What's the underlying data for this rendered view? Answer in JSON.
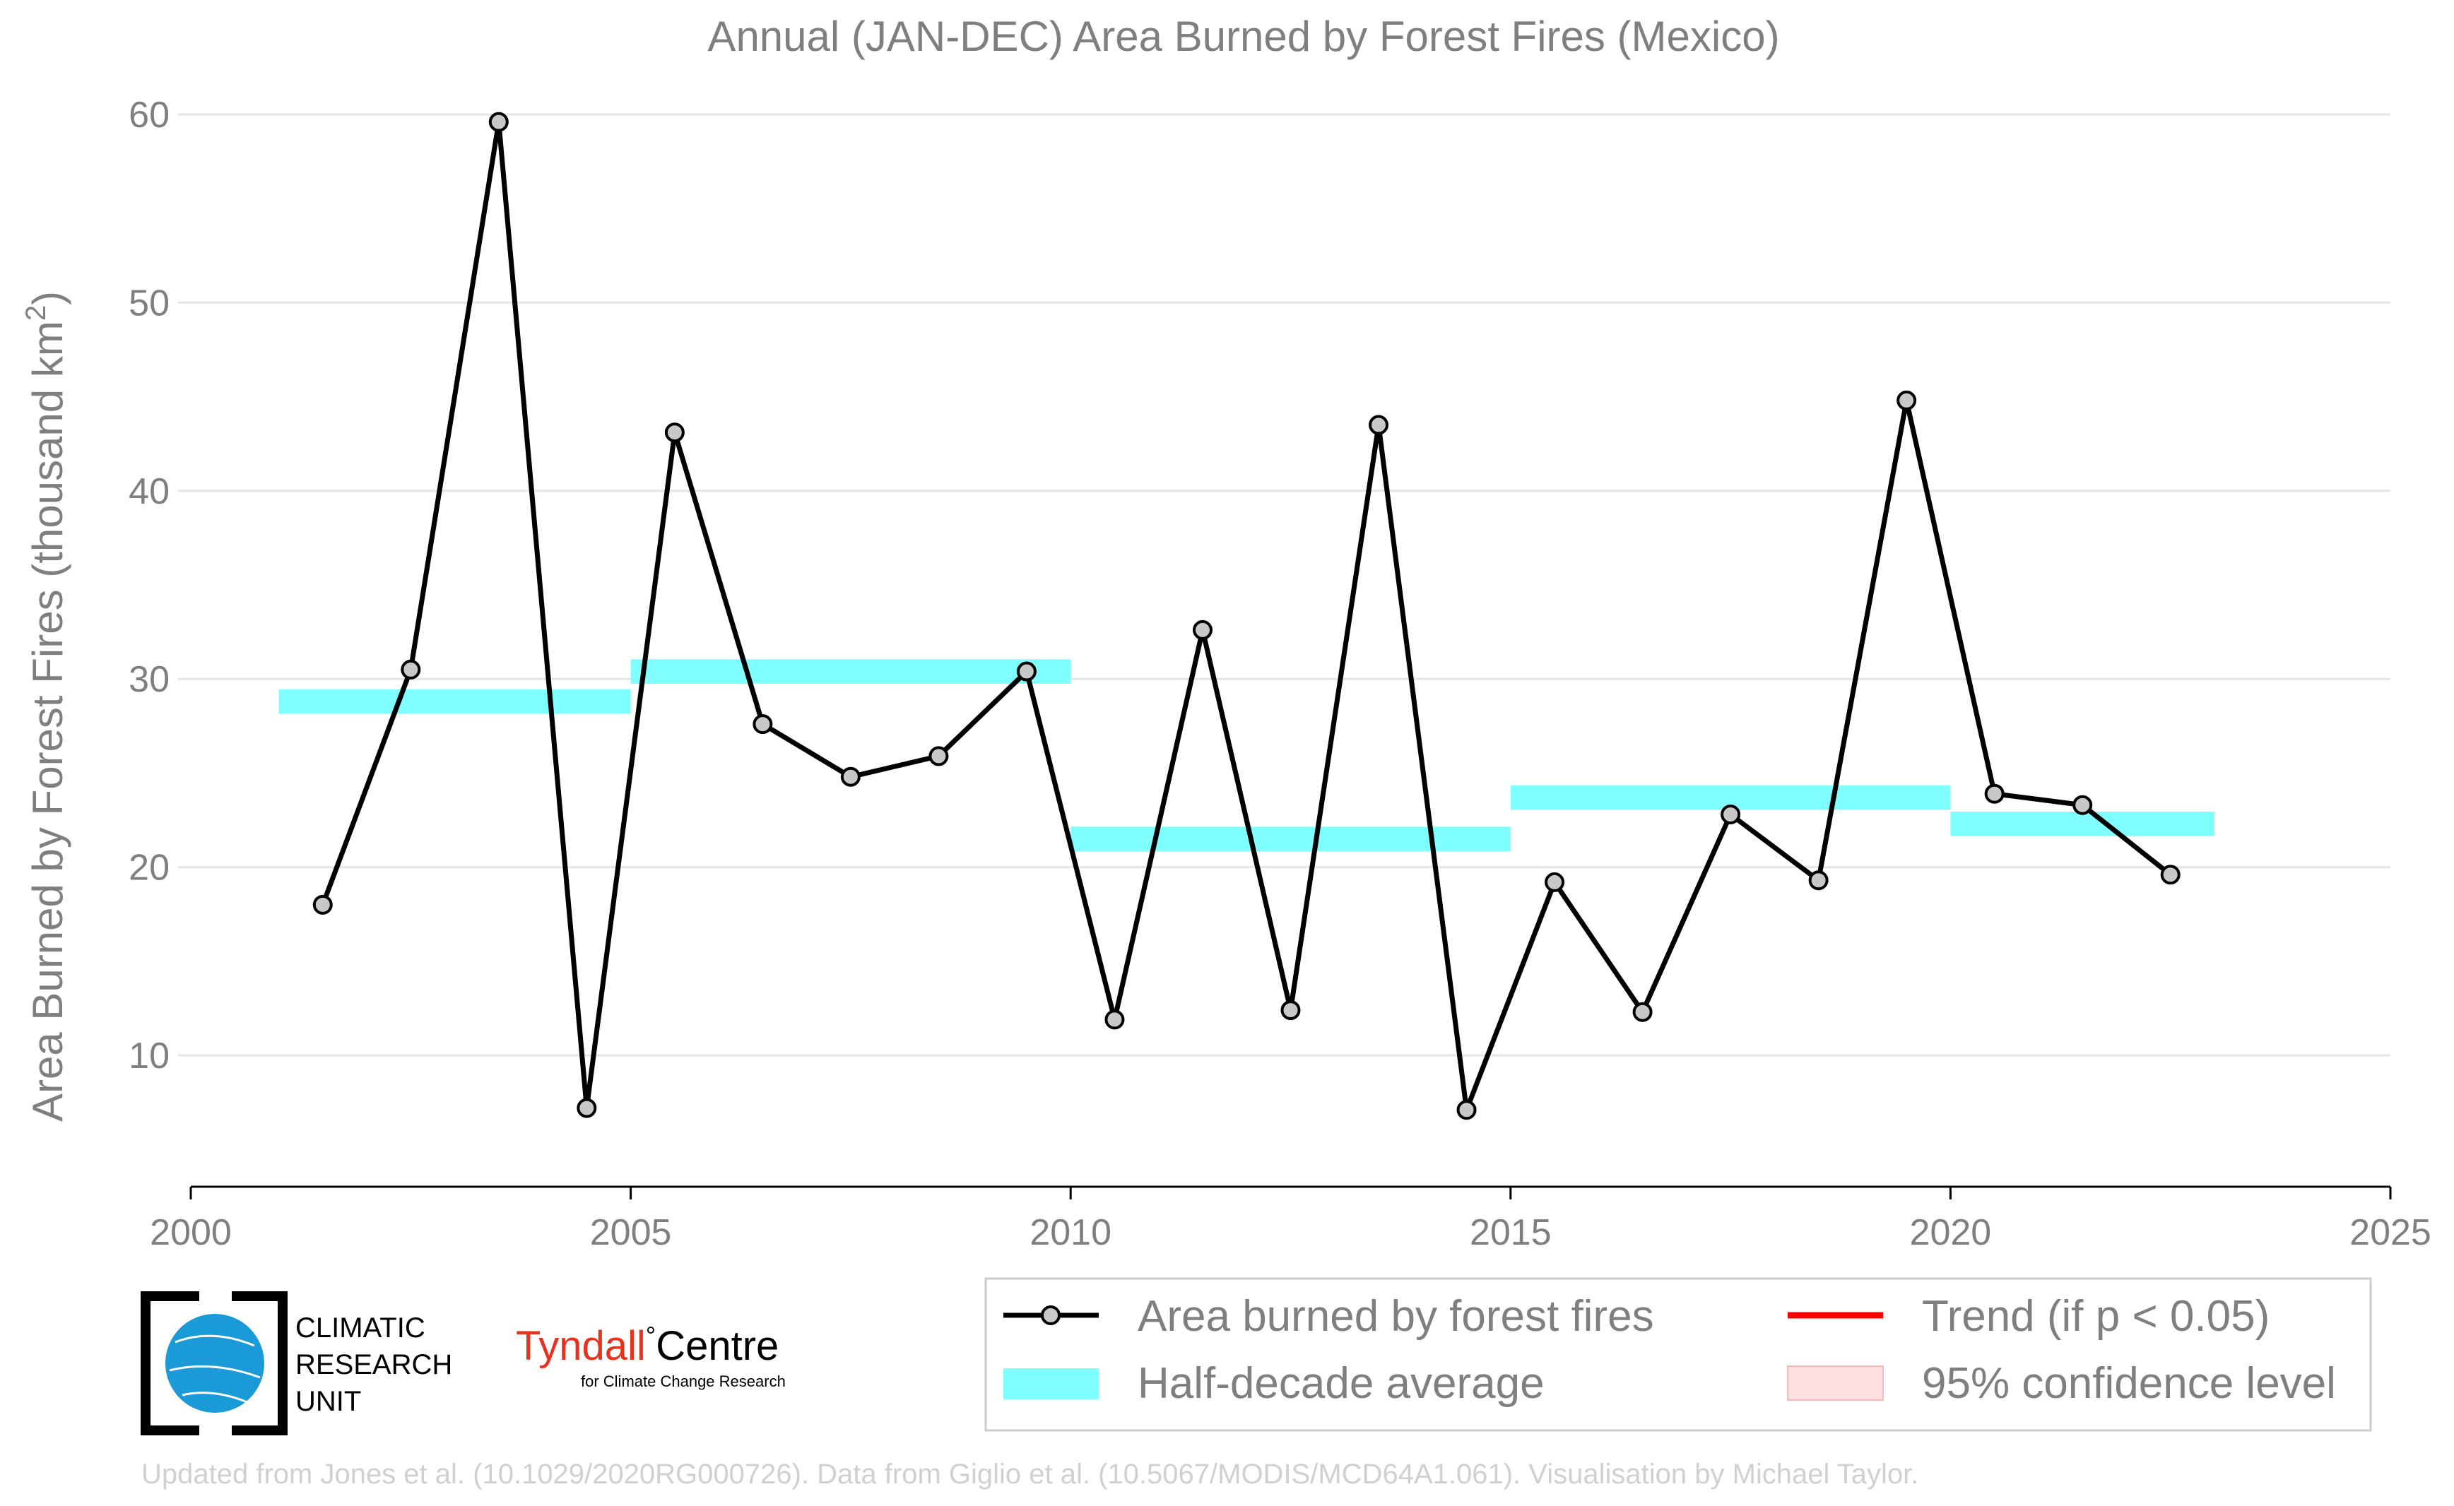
{
  "chart_data": {
    "type": "line",
    "title": "Annual (JAN-DEC) Area Burned by Forest Fires (Mexico)",
    "ylabel": "Area Burned by Forest Fires (thousand km",
    "ylabel_sup": "2",
    "ylabel_close": ")",
    "xlim": [
      2000,
      2025
    ],
    "ylim": [
      3,
      60
    ],
    "xticks": [
      2000,
      2005,
      2010,
      2015,
      2020,
      2025
    ],
    "yticks": [
      10,
      20,
      30,
      40,
      50,
      60
    ],
    "grid": true,
    "series": [
      {
        "name": "Area burned by forest fires",
        "color": "#000000",
        "marker_fill": "#c8c8c8",
        "x": [
          2001.5,
          2002.5,
          2003.5,
          2004.5,
          2005.5,
          2006.5,
          2007.5,
          2008.5,
          2009.5,
          2010.5,
          2011.5,
          2012.5,
          2013.5,
          2014.5,
          2015.5,
          2016.5,
          2017.5,
          2018.5,
          2019.5,
          2020.5,
          2021.5,
          2022.5
        ],
        "values": [
          18.0,
          30.5,
          59.6,
          7.2,
          43.1,
          27.6,
          24.8,
          25.9,
          30.4,
          11.9,
          32.6,
          12.4,
          43.5,
          7.1,
          19.2,
          12.3,
          22.8,
          19.3,
          44.8,
          23.9,
          23.3,
          19.6
        ]
      }
    ],
    "half_decade_averages": {
      "name": "Half-decade average",
      "color": "#7fffff",
      "segments": [
        {
          "x0": 2001,
          "x1": 2005,
          "value": 28.8
        },
        {
          "x0": 2005,
          "x1": 2010,
          "value": 30.4
        },
        {
          "x0": 2010,
          "x1": 2015,
          "value": 21.5
        },
        {
          "x0": 2015,
          "x1": 2020,
          "value": 23.7
        },
        {
          "x0": 2020,
          "x1": 2023,
          "value": 22.3
        }
      ]
    },
    "legend": {
      "placement": "bottom-right",
      "items": [
        {
          "label": "Area burned by forest fires",
          "kind": "line-marker",
          "color": "#000000"
        },
        {
          "label": "Half-decade average",
          "kind": "band",
          "color": "#7fffff"
        },
        {
          "label": "Trend (if p < 0.05)",
          "kind": "line",
          "color": "#ff0000"
        },
        {
          "label": "95% confidence level",
          "kind": "patch",
          "color": "#ffe0e0"
        }
      ]
    }
  },
  "logos": {
    "cru_line1": "CLIMATIC",
    "cru_line2": "RESEARCH",
    "cru_line3": "UNIT",
    "tyndall_main": "Tyndall",
    "tyndall_degree": "°",
    "tyndall_centre": "Centre",
    "tyndall_sub": "for Climate Change Research",
    "cru_color": "#1a9bd7",
    "tyndall_color": "#e8321e"
  },
  "credit": "Updated from Jones et al. (10.1029/2020RG000726). Data from Giglio et al. (10.5067/MODIS/MCD64A1.061). Visualisation by Michael Taylor."
}
